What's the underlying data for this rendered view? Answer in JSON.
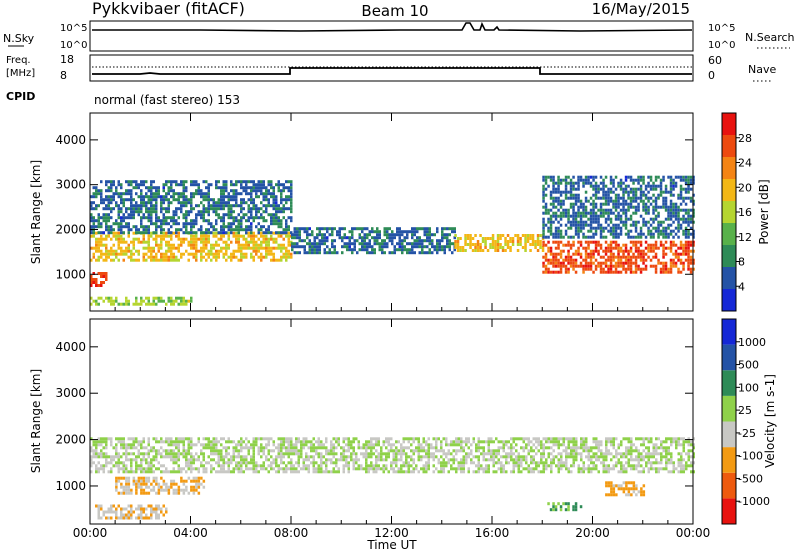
{
  "header": {
    "radar": "Pykkvibaer (fitACF)",
    "beam": "Beam 10",
    "date": "16/May/2015"
  },
  "panels": {
    "noise": {
      "left_label": "N.Sky",
      "right_label": "N.Search",
      "left_ticks": [
        "10^5",
        "10^0"
      ],
      "right_ticks": [
        "10^5",
        "10^0"
      ]
    },
    "freq": {
      "left_label_line1": "Freq.",
      "left_label_line2": "[MHz]",
      "right_label": "Nave",
      "left_ticks": [
        "18",
        "8"
      ],
      "right_ticks": [
        "60",
        "0"
      ]
    },
    "cpid": {
      "label": "CPID",
      "text": "normal (fast stereo) 153"
    }
  },
  "axes": {
    "ylabel": "Slant Range [km]",
    "xlabel": "Time UT",
    "y_ticks": [
      "1000",
      "2000",
      "3000",
      "4000"
    ],
    "x_ticks": [
      "00:00",
      "04:00",
      "08:00",
      "12:00",
      "16:00",
      "20:00",
      "00:00"
    ]
  },
  "colors": {
    "power": [
      "#1528d6",
      "#2453a6",
      "#2e8b57",
      "#58b14a",
      "#b5d530",
      "#f3b716",
      "#f48414",
      "#ed4a0f",
      "#e8120f"
    ],
    "velocity": [
      "#e8120f",
      "#ee5a0e",
      "#f39a12",
      "#c8c8c4",
      "#8fd14a",
      "#2e8b57",
      "#2453a6",
      "#1528d6"
    ]
  },
  "chart_data": [
    {
      "type": "heatmap",
      "name": "power",
      "title": "",
      "xlabel": "Time UT",
      "ylabel": "Slant Range [km]",
      "xlim": [
        "00:00",
        "24:00"
      ],
      "ylim": [
        180,
        4600
      ],
      "colorbar": {
        "label": "Power [dB]",
        "ticks": [
          "28",
          "24",
          "20",
          "16",
          "12",
          "8",
          "4"
        ],
        "range": [
          0,
          30
        ]
      },
      "bands": [
        {
          "t_start": 0.0,
          "t_end": 8.0,
          "range_km": [
            1300,
            1950
          ],
          "value_db": 18
        },
        {
          "t_start": 0.0,
          "t_end": 8.0,
          "range_km": [
            1950,
            3100
          ],
          "value_db": 6
        },
        {
          "t_start": 8.0,
          "t_end": 14.5,
          "range_km": [
            1500,
            2050
          ],
          "value_db": 6
        },
        {
          "t_start": 14.5,
          "t_end": 18.0,
          "range_km": [
            1500,
            1900
          ],
          "value_db": 18
        },
        {
          "t_start": 18.0,
          "t_end": 24.0,
          "range_km": [
            1050,
            1750
          ],
          "value_db": 25
        },
        {
          "t_start": 18.0,
          "t_end": 24.0,
          "range_km": [
            1800,
            3200
          ],
          "value_db": 6
        },
        {
          "t_start": 0.0,
          "t_end": 4.0,
          "range_km": [
            300,
            500
          ],
          "value_db": 14
        },
        {
          "t_start": 0.0,
          "t_end": 0.6,
          "range_km": [
            750,
            1050
          ],
          "value_db": 26
        }
      ]
    },
    {
      "type": "heatmap",
      "name": "velocity",
      "title": "",
      "xlabel": "Time UT",
      "ylabel": "Slant Range [km]",
      "xlim": [
        "00:00",
        "24:00"
      ],
      "ylim": [
        180,
        4600
      ],
      "colorbar": {
        "label": "Velocity [m s-1]",
        "ticks": [
          "1000",
          "500",
          "100",
          "25",
          "-25",
          "-100",
          "-500",
          "-1000"
        ],
        "range": [
          -1000,
          1000
        ]
      },
      "bands": [
        {
          "t_start": 0.0,
          "t_end": 24.0,
          "range_km": [
            1300,
            2050
          ],
          "value_ms": 0
        },
        {
          "t_start": 1.0,
          "t_end": 4.5,
          "range_km": [
            850,
            1200
          ],
          "value_ms": -250
        },
        {
          "t_start": 0.2,
          "t_end": 3.0,
          "range_km": [
            300,
            600
          ],
          "value_ms": -200
        },
        {
          "t_start": 20.5,
          "t_end": 22.0,
          "range_km": [
            800,
            1100
          ],
          "value_ms": -300
        },
        {
          "t_start": 18.2,
          "t_end": 19.5,
          "range_km": [
            500,
            650
          ],
          "value_ms": 300
        }
      ]
    }
  ]
}
